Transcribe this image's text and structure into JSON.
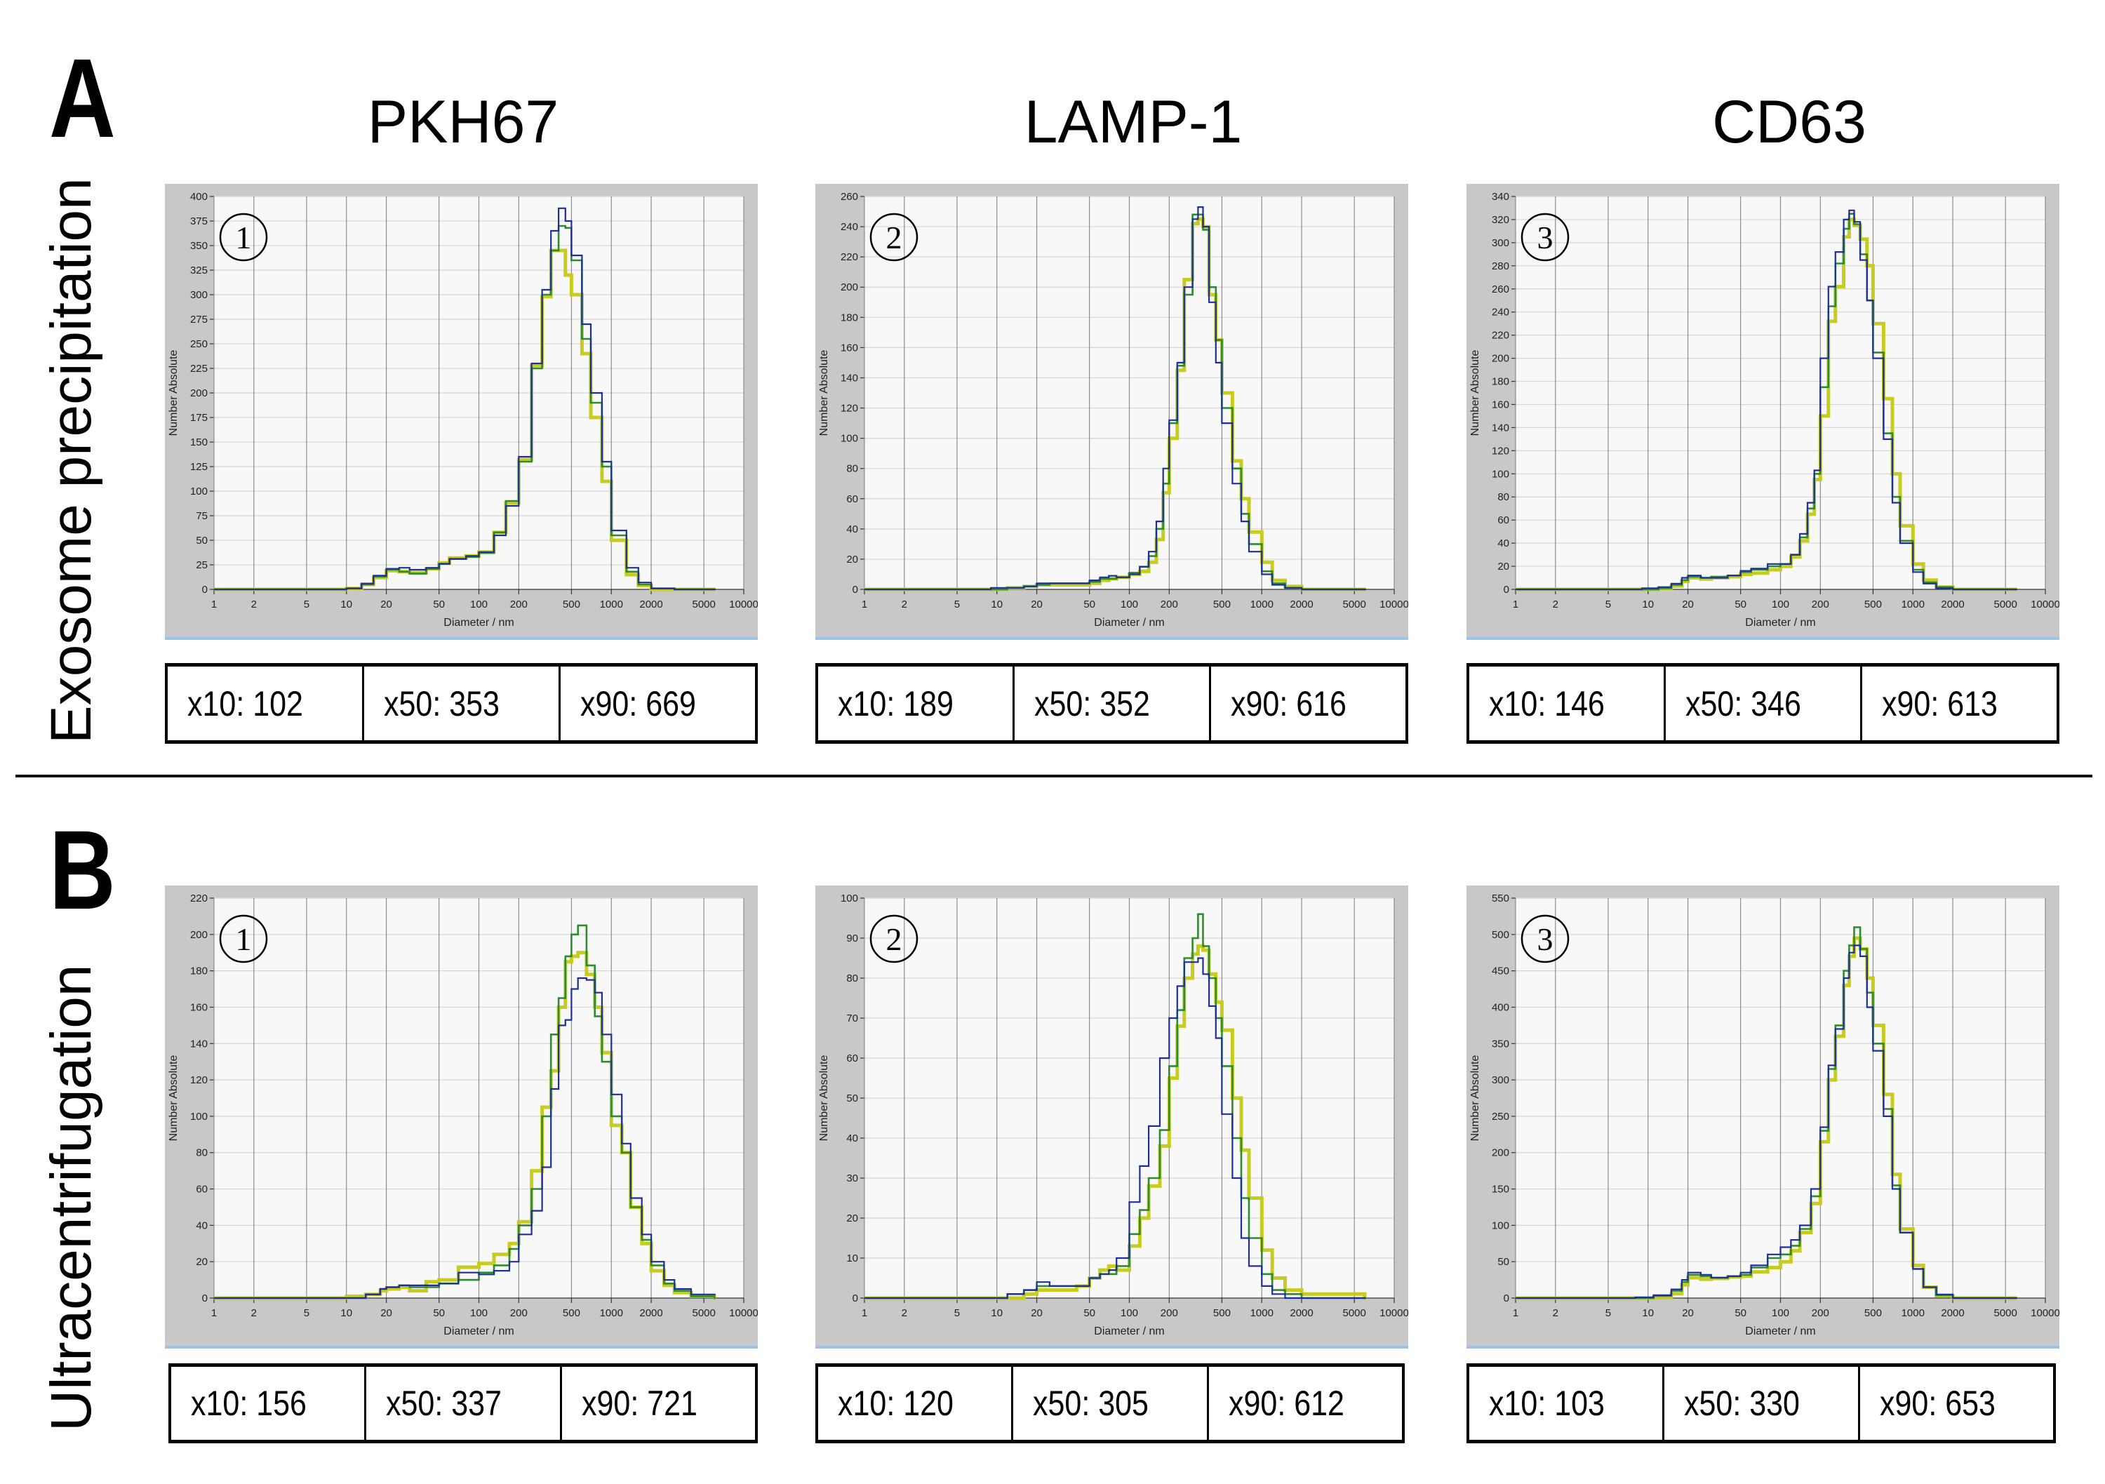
{
  "figure": {
    "panel_letters": [
      "A",
      "B"
    ],
    "row_labels": [
      "Exosome precipitation",
      "Ultracentrifugation"
    ],
    "column_titles": [
      "PKH67",
      "LAMP-1",
      "CD63"
    ],
    "series_colors": {
      "blue": "#1f2f9a",
      "green": "#2e8b2e",
      "yellow": "#c8cc1e"
    },
    "stats": [
      [
        [
          "x10: 102",
          "x50: 353",
          "x90: 669"
        ],
        [
          "x10: 189",
          "x50: 352",
          "x90: 616"
        ],
        [
          "x10: 146",
          "x50: 346",
          "x90: 613"
        ]
      ],
      [
        [
          "x10: 156",
          "x50: 337",
          "x90: 721"
        ],
        [
          "x10: 120",
          "x50: 305",
          "x90: 612"
        ],
        [
          "x10: 103",
          "x50: 330",
          "x90: 653"
        ]
      ]
    ]
  },
  "chart_data": [
    {
      "type": "line",
      "panel": "A",
      "row": "Exosome precipitation",
      "column": "PKH67",
      "marker": "①",
      "xlabel": "Diameter / nm",
      "ylabel": "Number Absolute",
      "xscale": "log",
      "xlim": [
        1,
        10000
      ],
      "ylim": [
        0,
        400
      ],
      "xticks": [
        1,
        2,
        5,
        10,
        20,
        50,
        100,
        200,
        500,
        1000,
        2000,
        5000,
        10000
      ],
      "yticks": [
        0,
        25,
        50,
        75,
        100,
        125,
        150,
        175,
        200,
        225,
        250,
        275,
        300,
        325,
        350,
        375,
        400
      ],
      "grid": true,
      "x": [
        1,
        5,
        8,
        10,
        13,
        16,
        20,
        25,
        30,
        40,
        50,
        60,
        80,
        100,
        130,
        160,
        200,
        250,
        300,
        350,
        400,
        450,
        500,
        600,
        700,
        850,
        1000,
        1300,
        1600,
        2000,
        3000,
        6000
      ],
      "series": [
        {
          "name": "blue",
          "values": [
            0,
            0,
            0,
            1,
            6,
            14,
            21,
            22,
            20,
            22,
            26,
            31,
            34,
            38,
            55,
            85,
            135,
            230,
            305,
            365,
            388,
            375,
            340,
            270,
            200,
            130,
            60,
            22,
            7,
            1,
            0,
            0
          ]
        },
        {
          "name": "green",
          "values": [
            0,
            0,
            0,
            1,
            5,
            13,
            20,
            18,
            16,
            21,
            26,
            31,
            33,
            37,
            58,
            90,
            130,
            225,
            300,
            345,
            370,
            368,
            335,
            255,
            190,
            125,
            55,
            18,
            5,
            1,
            0,
            0
          ]
        },
        {
          "name": "yellow",
          "values": [
            0,
            0,
            0,
            1,
            5,
            12,
            19,
            18,
            17,
            21,
            27,
            32,
            34,
            38,
            58,
            88,
            132,
            228,
            298,
            345,
            345,
            320,
            300,
            240,
            175,
            110,
            50,
            15,
            4,
            0,
            0,
            0
          ]
        }
      ]
    },
    {
      "type": "line",
      "panel": "A",
      "row": "Exosome precipitation",
      "column": "LAMP-1",
      "marker": "②",
      "xlabel": "Diameter / nm",
      "ylabel": "Number Absolute",
      "xscale": "log",
      "xlim": [
        1,
        10000
      ],
      "ylim": [
        0,
        260
      ],
      "xticks": [
        1,
        2,
        5,
        10,
        20,
        50,
        100,
        200,
        500,
        1000,
        2000,
        5000,
        10000
      ],
      "yticks": [
        0,
        20,
        40,
        60,
        80,
        100,
        120,
        140,
        160,
        180,
        200,
        220,
        240,
        260
      ],
      "grid": true,
      "x": [
        1,
        5,
        9,
        12,
        16,
        20,
        25,
        30,
        40,
        50,
        60,
        70,
        80,
        100,
        120,
        140,
        160,
        180,
        200,
        230,
        260,
        300,
        330,
        360,
        400,
        450,
        500,
        600,
        700,
        800,
        1000,
        1200,
        1500,
        2000,
        6000
      ],
      "series": [
        {
          "name": "blue",
          "values": [
            0,
            0,
            1,
            1,
            2,
            4,
            4,
            4,
            4,
            6,
            8,
            9,
            8,
            10,
            15,
            25,
            45,
            80,
            112,
            150,
            200,
            245,
            253,
            240,
            190,
            150,
            110,
            70,
            45,
            25,
            10,
            3,
            1,
            0,
            0
          ]
        },
        {
          "name": "green",
          "values": [
            0,
            0,
            0,
            1,
            2,
            3,
            4,
            4,
            4,
            5,
            7,
            7,
            8,
            11,
            15,
            22,
            40,
            70,
            110,
            148,
            195,
            248,
            248,
            238,
            200,
            165,
            120,
            80,
            50,
            30,
            12,
            4,
            1,
            0,
            0
          ]
        },
        {
          "name": "yellow",
          "values": [
            0,
            0,
            0,
            1,
            2,
            3,
            3,
            3,
            3,
            4,
            6,
            7,
            8,
            10,
            12,
            18,
            33,
            64,
            100,
            145,
            205,
            242,
            245,
            240,
            195,
            165,
            130,
            85,
            60,
            38,
            18,
            6,
            2,
            0,
            0
          ]
        }
      ]
    },
    {
      "type": "line",
      "panel": "A",
      "row": "Exosome precipitation",
      "column": "CD63",
      "marker": "③",
      "xlabel": "Diameter / nm",
      "ylabel": "Number Absolute",
      "xscale": "log",
      "xlim": [
        1,
        10000
      ],
      "ylim": [
        0,
        340
      ],
      "xticks": [
        1,
        2,
        5,
        10,
        20,
        50,
        100,
        200,
        500,
        1000,
        2000,
        5000,
        10000
      ],
      "yticks": [
        0,
        20,
        40,
        60,
        80,
        100,
        120,
        140,
        160,
        180,
        200,
        220,
        240,
        260,
        280,
        300,
        320,
        340
      ],
      "grid": true,
      "x": [
        1,
        5,
        9,
        12,
        15,
        18,
        20,
        25,
        30,
        40,
        50,
        60,
        80,
        100,
        120,
        140,
        160,
        180,
        200,
        230,
        260,
        300,
        330,
        360,
        400,
        450,
        500,
        600,
        700,
        800,
        1000,
        1200,
        1500,
        2000,
        6000
      ],
      "series": [
        {
          "name": "blue",
          "values": [
            0,
            0,
            1,
            2,
            5,
            10,
            12,
            10,
            10,
            12,
            16,
            18,
            22,
            22,
            30,
            48,
            75,
            103,
            200,
            262,
            292,
            320,
            328,
            318,
            285,
            250,
            200,
            130,
            75,
            40,
            15,
            5,
            1,
            0,
            0
          ]
        },
        {
          "name": "green",
          "values": [
            0,
            0,
            0,
            1,
            4,
            8,
            11,
            10,
            11,
            12,
            15,
            17,
            20,
            22,
            30,
            45,
            70,
            100,
            175,
            245,
            282,
            312,
            325,
            316,
            290,
            250,
            205,
            135,
            80,
            42,
            17,
            6,
            2,
            0,
            0
          ]
        },
        {
          "name": "yellow",
          "values": [
            0,
            0,
            0,
            1,
            3,
            7,
            10,
            9,
            10,
            11,
            13,
            14,
            17,
            20,
            28,
            42,
            65,
            95,
            150,
            232,
            262,
            305,
            320,
            315,
            303,
            280,
            230,
            165,
            100,
            55,
            22,
            8,
            2,
            0,
            0
          ]
        }
      ]
    },
    {
      "type": "line",
      "panel": "B",
      "row": "Ultracentrifugation",
      "column": "PKH67",
      "marker": "①",
      "xlabel": "Diameter / nm",
      "ylabel": "Number Absolute",
      "xscale": "log",
      "xlim": [
        1,
        10000
      ],
      "ylim": [
        0,
        220
      ],
      "xticks": [
        1,
        2,
        5,
        10,
        20,
        50,
        100,
        200,
        500,
        1000,
        2000,
        5000,
        10000
      ],
      "yticks": [
        0,
        20,
        40,
        60,
        80,
        100,
        120,
        140,
        160,
        180,
        200,
        220
      ],
      "grid": true,
      "x": [
        1,
        5,
        10,
        14,
        18,
        20,
        25,
        30,
        40,
        50,
        70,
        100,
        130,
        170,
        200,
        250,
        300,
        350,
        400,
        450,
        500,
        560,
        650,
        750,
        850,
        1000,
        1200,
        1400,
        1700,
        2000,
        2500,
        3000,
        4000,
        6000
      ],
      "series": [
        {
          "name": "blue",
          "values": [
            0,
            0,
            0,
            2,
            5,
            6,
            7,
            7,
            7,
            8,
            14,
            13,
            15,
            20,
            35,
            48,
            72,
            115,
            150,
            153,
            170,
            176,
            175,
            168,
            145,
            112,
            85,
            55,
            35,
            20,
            10,
            5,
            2,
            2
          ]
        },
        {
          "name": "green",
          "values": [
            0,
            0,
            0,
            2,
            5,
            6,
            7,
            6,
            6,
            8,
            10,
            14,
            18,
            27,
            40,
            60,
            100,
            145,
            165,
            188,
            200,
            205,
            183,
            155,
            130,
            100,
            80,
            50,
            32,
            18,
            8,
            4,
            1,
            0
          ]
        },
        {
          "name": "yellow",
          "values": [
            0,
            0,
            1,
            2,
            4,
            5,
            6,
            4,
            9,
            10,
            17,
            19,
            24,
            30,
            42,
            70,
            105,
            125,
            160,
            185,
            188,
            190,
            178,
            160,
            135,
            95,
            80,
            50,
            30,
            15,
            7,
            3,
            1,
            0
          ]
        }
      ]
    },
    {
      "type": "line",
      "panel": "B",
      "row": "Ultracentrifugation",
      "column": "LAMP-1",
      "marker": "②",
      "xlabel": "Diameter / nm",
      "ylabel": "Number Absolute",
      "xscale": "log",
      "xlim": [
        1,
        10000
      ],
      "ylim": [
        0,
        100
      ],
      "xticks": [
        1,
        2,
        5,
        10,
        20,
        50,
        100,
        200,
        500,
        1000,
        2000,
        5000,
        10000
      ],
      "yticks": [
        0,
        10,
        20,
        30,
        40,
        50,
        60,
        70,
        80,
        90,
        100
      ],
      "grid": true,
      "x": [
        1,
        5,
        9,
        12,
        16,
        20,
        25,
        30,
        40,
        50,
        60,
        70,
        80,
        100,
        120,
        140,
        170,
        200,
        230,
        260,
        300,
        330,
        360,
        400,
        450,
        500,
        600,
        700,
        800,
        1000,
        1200,
        1500,
        2000,
        6000
      ],
      "series": [
        {
          "name": "blue",
          "values": [
            0,
            0,
            0,
            1,
            2,
            4,
            3,
            3,
            3,
            5,
            6,
            7,
            10,
            24,
            33,
            43,
            60,
            70,
            78,
            84,
            84,
            85,
            81,
            73,
            65,
            46,
            30,
            15,
            8,
            3,
            1,
            0,
            0,
            0
          ]
        },
        {
          "name": "green",
          "values": [
            0,
            0,
            0,
            1,
            2,
            3,
            3,
            3,
            3,
            5,
            6,
            6,
            8,
            16,
            22,
            30,
            42,
            58,
            72,
            85,
            90,
            96,
            88,
            80,
            70,
            58,
            40,
            25,
            15,
            6,
            2,
            1,
            0,
            0
          ]
        },
        {
          "name": "yellow",
          "values": [
            0,
            0,
            0,
            0,
            1,
            2,
            2,
            2,
            3,
            5,
            7,
            8,
            7,
            13,
            20,
            28,
            38,
            55,
            68,
            80,
            86,
            88,
            87,
            81,
            74,
            67,
            50,
            37,
            25,
            12,
            5,
            2,
            1,
            0
          ]
        }
      ]
    },
    {
      "type": "line",
      "panel": "B",
      "row": "Ultracentrifugation",
      "column": "CD63",
      "marker": "③",
      "xlabel": "Diameter / nm",
      "ylabel": "Number Absolute",
      "xscale": "log",
      "xlim": [
        1,
        10000
      ],
      "ylim": [
        0,
        550
      ],
      "xticks": [
        1,
        2,
        5,
        10,
        20,
        50,
        100,
        200,
        500,
        1000,
        2000,
        5000,
        10000
      ],
      "yticks": [
        0,
        50,
        100,
        150,
        200,
        250,
        300,
        350,
        400,
        450,
        500,
        550
      ],
      "grid": true,
      "x": [
        1,
        5,
        8,
        11,
        15,
        18,
        20,
        25,
        30,
        40,
        50,
        60,
        80,
        100,
        120,
        140,
        170,
        200,
        230,
        260,
        300,
        330,
        360,
        400,
        450,
        500,
        600,
        700,
        800,
        1000,
        1200,
        1500,
        2000,
        6000
      ],
      "series": [
        {
          "name": "blue",
          "values": [
            0,
            0,
            1,
            4,
            12,
            25,
            35,
            32,
            28,
            30,
            35,
            45,
            60,
            70,
            80,
            100,
            150,
            235,
            320,
            370,
            440,
            475,
            485,
            470,
            400,
            340,
            250,
            150,
            90,
            40,
            15,
            5,
            0,
            0
          ]
        },
        {
          "name": "green",
          "values": [
            0,
            0,
            0,
            3,
            10,
            22,
            32,
            30,
            28,
            30,
            32,
            42,
            55,
            60,
            72,
            95,
            140,
            230,
            315,
            375,
            450,
            485,
            510,
            480,
            420,
            350,
            260,
            155,
            90,
            40,
            15,
            4,
            0,
            0
          ]
        },
        {
          "name": "yellow",
          "values": [
            0,
            0,
            0,
            1,
            6,
            18,
            28,
            26,
            27,
            29,
            30,
            36,
            42,
            50,
            65,
            90,
            130,
            215,
            300,
            360,
            430,
            470,
            495,
            480,
            440,
            375,
            280,
            170,
            95,
            45,
            15,
            3,
            0,
            0
          ]
        }
      ]
    }
  ]
}
